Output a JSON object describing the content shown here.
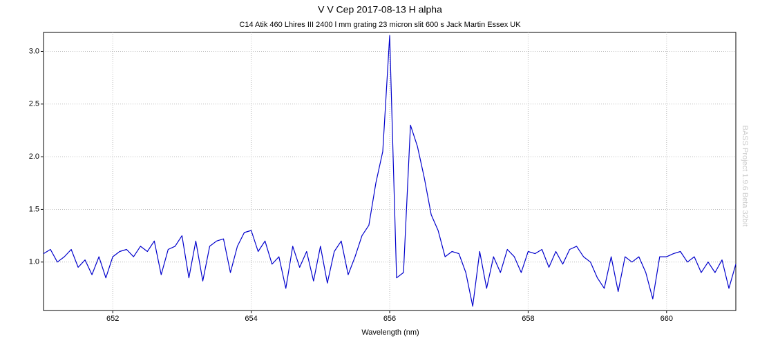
{
  "chart_data": {
    "type": "line",
    "title": "V V Cep 2017-08-13 H alpha",
    "subtitle": "C14 Atik 460 Lhires III 2400 l mm grating 23 micron slit 600 s Jack Martin Essex UK",
    "x_label": "Wavelength (nm)",
    "watermark": "BASS Project 1.9.6 Beta 32bit",
    "x": [
      651.0,
      651.1,
      651.2,
      651.3,
      651.4,
      651.5,
      651.6,
      651.7,
      651.8,
      651.9,
      652.0,
      652.1,
      652.2,
      652.3,
      652.4,
      652.5,
      652.6,
      652.7,
      652.8,
      652.9,
      653.0,
      653.1,
      653.2,
      653.3,
      653.4,
      653.5,
      653.6,
      653.7,
      653.8,
      653.9,
      654.0,
      654.1,
      654.2,
      654.3,
      654.4,
      654.5,
      654.6,
      654.7,
      654.8,
      654.9,
      655.0,
      655.1,
      655.2,
      655.3,
      655.4,
      655.5,
      655.6,
      655.7,
      655.8,
      655.9,
      656.0,
      656.1,
      656.2,
      656.3,
      656.4,
      656.5,
      656.6,
      656.7,
      656.8,
      656.9,
      657.0,
      657.1,
      657.2,
      657.3,
      657.4,
      657.5,
      657.6,
      657.7,
      657.8,
      657.9,
      658.0,
      658.1,
      658.2,
      658.3,
      658.4,
      658.5,
      658.6,
      658.7,
      658.8,
      658.9,
      659.0,
      659.1,
      659.2,
      659.3,
      659.4,
      659.5,
      659.6,
      659.7,
      659.8,
      659.9,
      660.0,
      660.1,
      660.2,
      660.3,
      660.4,
      660.5,
      660.6,
      660.7,
      660.8,
      660.9,
      661.0
    ],
    "series": [
      {
        "name": "V V Cep",
        "color": "#0000cc",
        "values": [
          1.08,
          1.12,
          1.0,
          1.05,
          1.12,
          0.95,
          1.02,
          0.88,
          1.05,
          0.85,
          1.05,
          1.1,
          1.12,
          1.05,
          1.15,
          1.1,
          1.2,
          0.88,
          1.12,
          1.15,
          1.25,
          0.85,
          1.2,
          0.82,
          1.15,
          1.2,
          1.22,
          0.9,
          1.15,
          1.28,
          1.3,
          1.1,
          1.2,
          0.98,
          1.05,
          0.75,
          1.15,
          0.95,
          1.1,
          0.82,
          1.15,
          0.8,
          1.1,
          1.2,
          0.88,
          1.05,
          1.25,
          1.35,
          1.75,
          2.05,
          3.15,
          0.85,
          0.9,
          2.3,
          2.1,
          1.8,
          1.45,
          1.3,
          1.05,
          1.1,
          1.08,
          0.9,
          0.58,
          1.1,
          0.75,
          1.05,
          0.9,
          1.12,
          1.05,
          0.9,
          1.1,
          1.08,
          1.12,
          0.95,
          1.1,
          0.98,
          1.12,
          1.15,
          1.05,
          1.0,
          0.85,
          0.75,
          1.05,
          0.72,
          1.05,
          1.0,
          1.05,
          0.9,
          0.65,
          1.05,
          1.05,
          1.08,
          1.1,
          1.0,
          1.05,
          0.9,
          1.0,
          0.9,
          1.02,
          0.75,
          0.98
        ]
      }
    ],
    "xlim": [
      651,
      661
    ],
    "ylim": [
      0.54,
      3.18
    ],
    "xticks": [
      652,
      654,
      656,
      658,
      660
    ],
    "yticks": [
      {
        "value": 1,
        "label": "1.0"
      },
      1.5,
      {
        "value": 2,
        "label": "2.0"
      },
      2.5,
      {
        "value": 3,
        "label": "3.0"
      }
    ],
    "grid": true
  }
}
